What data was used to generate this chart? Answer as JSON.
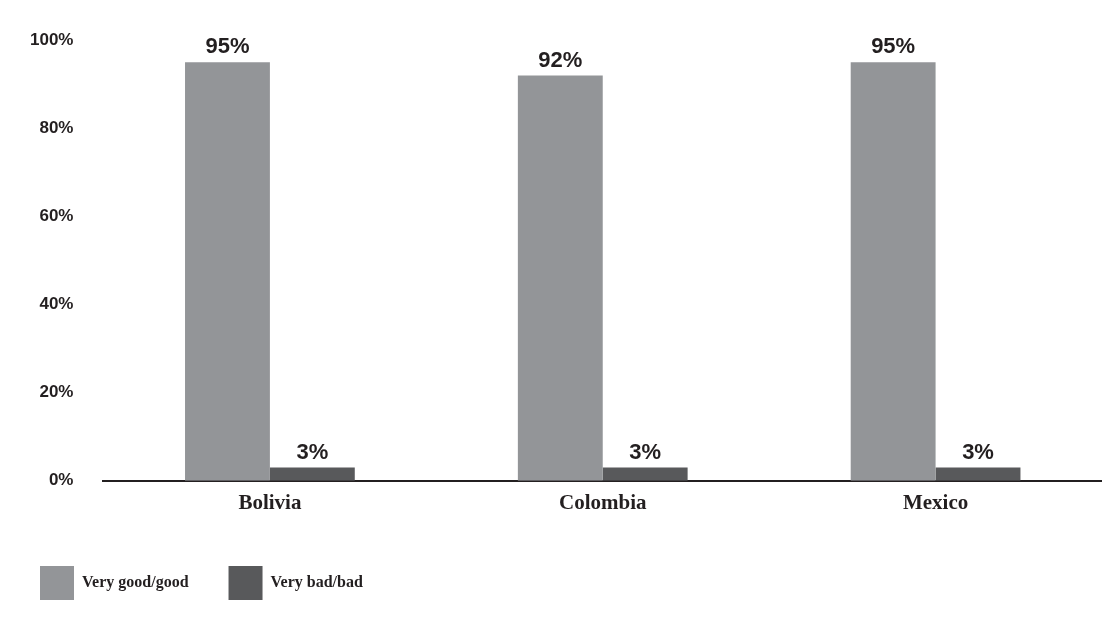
{
  "chart_data": {
    "type": "bar",
    "categories": [
      "Bolivia",
      "Colombia",
      "Mexico"
    ],
    "series": [
      {
        "name": "Very good/good",
        "color": "#939598",
        "values": [
          95,
          92,
          95
        ]
      },
      {
        "name": "Very bad/bad",
        "color": "#58595b",
        "values": [
          3,
          3,
          3
        ]
      }
    ],
    "ylim": [
      0,
      100
    ],
    "yticks": [
      {
        "value": 0,
        "label": "0%"
      },
      {
        "value": 20,
        "label": "20%"
      },
      {
        "value": 40,
        "label": "40%"
      },
      {
        "value": 60,
        "label": "60%"
      },
      {
        "value": 80,
        "label": "80%"
      },
      {
        "value": 100,
        "label": "100%"
      }
    ],
    "value_labels": [
      [
        "95%",
        "92%",
        "95%"
      ],
      [
        "3%",
        "3%",
        "3%"
      ]
    ],
    "grid": false,
    "legend": "bottom left"
  }
}
